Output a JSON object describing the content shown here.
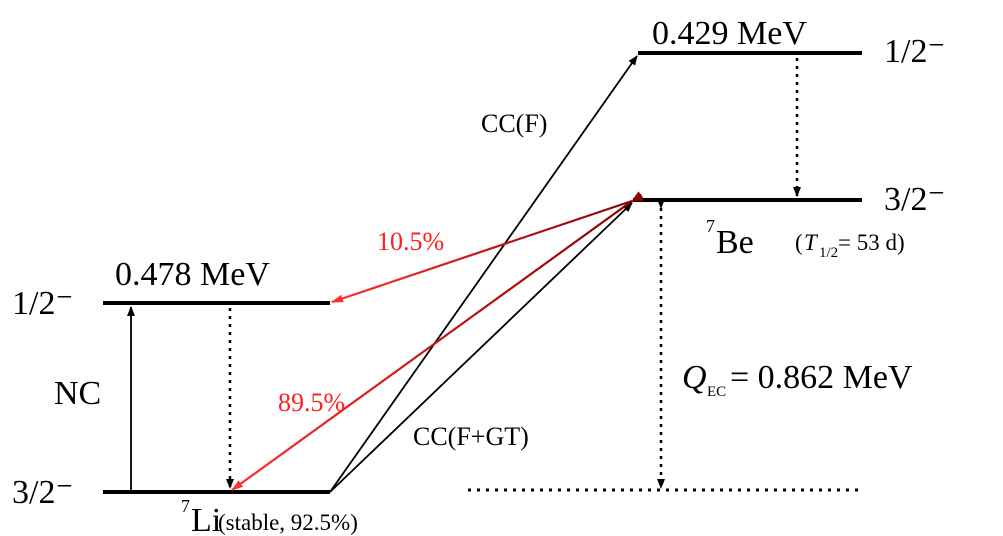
{
  "be7": {
    "excited_energy": "0.429 MeV",
    "excited_spin": "1/2⁻",
    "ground_spin": "3/2⁻",
    "mass_number": "7",
    "symbol": "Be",
    "halflife_open": "(",
    "halflife_T": "T",
    "halflife_sub": "1/2",
    "halflife_value": " = 53 d)"
  },
  "li7": {
    "excited_energy": "0.478 MeV",
    "excited_spin": "1/2⁻",
    "ground_spin": "3/2⁻",
    "mass_number": "7",
    "symbol": "Li",
    "note": "(stable, 92.5%)"
  },
  "transitions": {
    "nc": "NC",
    "cc_f": "CC(F)",
    "cc_fgt": "CC(F+GT)",
    "branch_excited": "10.5%",
    "branch_ground": "89.5%"
  },
  "q_value": {
    "symbol": "Q",
    "subscript": "EC",
    "value": " = 0.862 MeV"
  },
  "colors": {
    "level": "#000000",
    "ec_arrow_dark": "#8b0000",
    "ec_arrow_light": "#ff3030",
    "branch_text": "#ff2020"
  }
}
